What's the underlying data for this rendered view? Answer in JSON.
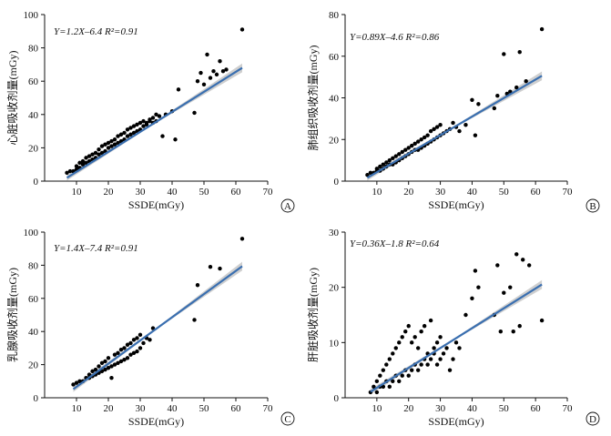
{
  "chart_data": [
    {
      "id": "A",
      "type": "scatter",
      "panel_label": "A",
      "xlabel": "SSDE(mGy)",
      "ylabel": "心脏吸收剂量(mGy)",
      "equation": "Y=1.2X–6.4  R²=0.91",
      "xlim": [
        0,
        70
      ],
      "ylim": [
        0,
        100
      ],
      "xticks": [
        10,
        20,
        30,
        40,
        50,
        60,
        70
      ],
      "yticks": [
        0,
        20,
        40,
        60,
        80,
        100
      ],
      "fit": {
        "slope": 1.2,
        "intercept": -6.4,
        "x_range": [
          7,
          62
        ],
        "r2": 0.91
      },
      "x": [
        7,
        8,
        9,
        10,
        10,
        11,
        11,
        12,
        12,
        13,
        13,
        14,
        14,
        15,
        15,
        16,
        16,
        17,
        17,
        18,
        18,
        19,
        19,
        20,
        20,
        21,
        21,
        22,
        22,
        23,
        23,
        24,
        24,
        25,
        25,
        26,
        26,
        27,
        27,
        28,
        28,
        29,
        29,
        30,
        30,
        31,
        31,
        32,
        32,
        33,
        33,
        34,
        34,
        35,
        35,
        36,
        37,
        38,
        40,
        41,
        42,
        47,
        48,
        49,
        50,
        51,
        52,
        53,
        54,
        55,
        56,
        57,
        62
      ],
      "y": [
        5,
        6,
        6,
        7,
        9,
        8,
        11,
        10,
        12,
        11,
        14,
        12,
        15,
        13,
        16,
        14,
        17,
        16,
        19,
        17,
        21,
        18,
        22,
        20,
        23,
        21,
        24,
        22,
        25,
        23,
        27,
        24,
        28,
        25,
        29,
        27,
        31,
        28,
        32,
        29,
        33,
        30,
        34,
        31,
        35,
        33,
        36,
        34,
        35,
        36,
        37,
        35,
        38,
        36,
        40,
        39,
        27,
        40,
        42,
        25,
        55,
        41,
        60,
        65,
        58,
        76,
        62,
        66,
        64,
        72,
        66,
        67,
        91
      ]
    },
    {
      "id": "B",
      "type": "scatter",
      "panel_label": "B",
      "xlabel": "SSDE(mGy)",
      "ylabel": "肺组织吸收剂量(mGy)",
      "equation": "Y=0.89X–4.6  R²=0.86",
      "xlim": [
        0,
        70
      ],
      "ylim": [
        0,
        80
      ],
      "xticks": [
        10,
        20,
        30,
        40,
        50,
        60,
        70
      ],
      "yticks": [
        0,
        20,
        40,
        60,
        80
      ],
      "fit": {
        "slope": 0.89,
        "intercept": -4.6,
        "x_range": [
          7,
          62
        ],
        "r2": 0.86
      },
      "x": [
        7,
        8,
        9,
        10,
        10,
        11,
        11,
        12,
        12,
        13,
        13,
        14,
        14,
        15,
        15,
        16,
        16,
        17,
        17,
        18,
        18,
        19,
        19,
        20,
        20,
        21,
        21,
        22,
        22,
        23,
        23,
        24,
        24,
        25,
        25,
        26,
        26,
        27,
        27,
        28,
        28,
        29,
        29,
        30,
        30,
        31,
        32,
        33,
        34,
        35,
        36,
        38,
        40,
        41,
        42,
        47,
        48,
        50,
        51,
        52,
        54,
        55,
        57,
        62
      ],
      "y": [
        3,
        4,
        4,
        5,
        6,
        5,
        7,
        6,
        8,
        7,
        9,
        8,
        10,
        8,
        11,
        9,
        12,
        10,
        13,
        11,
        14,
        12,
        15,
        13,
        16,
        14,
        17,
        15,
        18,
        15,
        19,
        16,
        20,
        17,
        21,
        18,
        22,
        19,
        24,
        20,
        25,
        21,
        26,
        22,
        27,
        23,
        24,
        25,
        28,
        26,
        24,
        27,
        39,
        22,
        37,
        35,
        41,
        61,
        42,
        43,
        45,
        62,
        48,
        73
      ]
    },
    {
      "id": "C",
      "type": "scatter",
      "panel_label": "C",
      "xlabel": "SSDE(mGy)",
      "ylabel": "乳腺吸收剂量(mGy)",
      "equation": "Y=1.4X–7.4  R²=0.91",
      "xlim": [
        0,
        70
      ],
      "ylim": [
        0,
        100
      ],
      "xticks": [
        10,
        20,
        30,
        40,
        50,
        60,
        70
      ],
      "yticks": [
        0,
        20,
        40,
        60,
        80,
        100
      ],
      "fit": {
        "slope": 1.4,
        "intercept": -7.4,
        "x_range": [
          9,
          62
        ],
        "r2": 0.91
      },
      "x": [
        9,
        10,
        11,
        12,
        13,
        14,
        14,
        15,
        15,
        16,
        16,
        17,
        17,
        18,
        18,
        19,
        19,
        20,
        20,
        21,
        21,
        22,
        22,
        23,
        23,
        24,
        24,
        25,
        25,
        26,
        26,
        27,
        27,
        28,
        28,
        29,
        29,
        30,
        30,
        31,
        32,
        33,
        34,
        47,
        48,
        52,
        55,
        62
      ],
      "y": [
        8,
        9,
        10,
        10,
        12,
        12,
        14,
        13,
        16,
        14,
        17,
        15,
        19,
        16,
        21,
        17,
        22,
        18,
        24,
        19,
        12,
        20,
        26,
        21,
        27,
        22,
        29,
        23,
        30,
        24,
        32,
        26,
        33,
        27,
        35,
        28,
        36,
        30,
        38,
        33,
        36,
        35,
        42,
        47,
        68,
        79,
        78,
        96
      ]
    },
    {
      "id": "D",
      "type": "scatter",
      "panel_label": "D",
      "xlabel": "SSDE(mGy)",
      "ylabel": "肝脏吸收剂量(mGy)",
      "equation": "Y=0.36X–1.8  R²=0.64",
      "xlim": [
        0,
        70
      ],
      "ylim": [
        0,
        30
      ],
      "xticks": [
        10,
        20,
        30,
        40,
        50,
        60,
        70
      ],
      "yticks": [
        0,
        10,
        20,
        30
      ],
      "fit": {
        "slope": 0.36,
        "intercept": -1.8,
        "x_range": [
          8,
          62
        ],
        "r2": 0.64
      },
      "x": [
        8,
        9,
        10,
        10,
        11,
        11,
        12,
        12,
        13,
        13,
        14,
        14,
        15,
        15,
        16,
        16,
        17,
        17,
        18,
        18,
        19,
        19,
        20,
        20,
        21,
        21,
        22,
        22,
        23,
        23,
        24,
        24,
        25,
        25,
        26,
        26,
        27,
        27,
        28,
        28,
        29,
        29,
        30,
        30,
        31,
        32,
        33,
        34,
        35,
        36,
        38,
        40,
        41,
        42,
        47,
        48,
        49,
        50,
        52,
        53,
        54,
        55,
        56,
        58,
        62
      ],
      "y": [
        1,
        2,
        1,
        3,
        2,
        4,
        2,
        5,
        3,
        6,
        2,
        7,
        3,
        8,
        4,
        9,
        3,
        10,
        4,
        11,
        5,
        12,
        4,
        13,
        5,
        10,
        6,
        11,
        5,
        9,
        6,
        12,
        7,
        13,
        6,
        8,
        7,
        14,
        8,
        9,
        6,
        10,
        7,
        11,
        8,
        9,
        5,
        7,
        10,
        9,
        15,
        18,
        23,
        20,
        15,
        24,
        12,
        19,
        20,
        12,
        26,
        13,
        25,
        24,
        14
      ]
    }
  ]
}
